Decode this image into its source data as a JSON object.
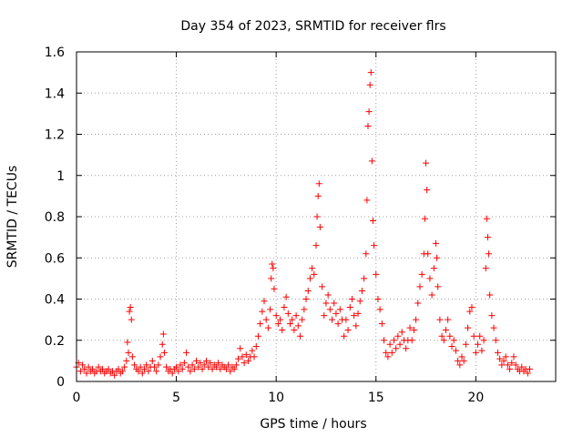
{
  "chart_data": {
    "type": "scatter",
    "title": "Day 354 of 2023, SRMTID for receiver flrs",
    "xlabel": "GPS time / hours",
    "ylabel": "SRMTID / TECUs",
    "xlim": [
      0,
      24
    ],
    "ylim": [
      0,
      1.6
    ],
    "grid": true,
    "marker": "+",
    "color": "#ff0000",
    "xticks": [
      0,
      5,
      10,
      15,
      20
    ],
    "xtick_labels": [
      "0",
      "5",
      "10",
      "15",
      "20"
    ],
    "yticks": [
      0,
      0.2,
      0.4,
      0.6,
      0.8,
      1,
      1.2,
      1.4,
      1.6
    ],
    "ytick_labels": [
      "0",
      "0.2",
      "0.4",
      "0.6",
      "0.8",
      "1",
      "1.2",
      "1.4",
      "1.6"
    ],
    "series": [
      {
        "name": "flrs",
        "points": [
          [
            0.0,
            0.07
          ],
          [
            0.1,
            0.09
          ],
          [
            0.2,
            0.05
          ],
          [
            0.3,
            0.08
          ],
          [
            0.4,
            0.06
          ],
          [
            0.5,
            0.04
          ],
          [
            0.6,
            0.07
          ],
          [
            0.7,
            0.05
          ],
          [
            0.8,
            0.06
          ],
          [
            0.9,
            0.04
          ],
          [
            1.0,
            0.05
          ],
          [
            1.1,
            0.07
          ],
          [
            1.2,
            0.05
          ],
          [
            1.3,
            0.06
          ],
          [
            1.4,
            0.04
          ],
          [
            1.5,
            0.05
          ],
          [
            1.6,
            0.06
          ],
          [
            1.7,
            0.04
          ],
          [
            1.8,
            0.05
          ],
          [
            1.9,
            0.03
          ],
          [
            2.0,
            0.05
          ],
          [
            2.1,
            0.06
          ],
          [
            2.2,
            0.04
          ],
          [
            2.3,
            0.05
          ],
          [
            2.4,
            0.07
          ],
          [
            2.5,
            0.1
          ],
          [
            2.55,
            0.19
          ],
          [
            2.6,
            0.14
          ],
          [
            2.65,
            0.34
          ],
          [
            2.7,
            0.36
          ],
          [
            2.75,
            0.3
          ],
          [
            2.8,
            0.12
          ],
          [
            2.9,
            0.08
          ],
          [
            3.0,
            0.06
          ],
          [
            3.1,
            0.05
          ],
          [
            3.2,
            0.07
          ],
          [
            3.3,
            0.04
          ],
          [
            3.4,
            0.06
          ],
          [
            3.5,
            0.08
          ],
          [
            3.6,
            0.05
          ],
          [
            3.7,
            0.07
          ],
          [
            3.8,
            0.1
          ],
          [
            3.9,
            0.07
          ],
          [
            4.0,
            0.05
          ],
          [
            4.1,
            0.08
          ],
          [
            4.2,
            0.12
          ],
          [
            4.3,
            0.18
          ],
          [
            4.35,
            0.23
          ],
          [
            4.4,
            0.14
          ],
          [
            4.5,
            0.07
          ],
          [
            4.6,
            0.05
          ],
          [
            4.7,
            0.06
          ],
          [
            4.8,
            0.04
          ],
          [
            4.9,
            0.06
          ],
          [
            5.0,
            0.07
          ],
          [
            5.1,
            0.05
          ],
          [
            5.2,
            0.08
          ],
          [
            5.3,
            0.06
          ],
          [
            5.4,
            0.09
          ],
          [
            5.5,
            0.14
          ],
          [
            5.6,
            0.07
          ],
          [
            5.7,
            0.05
          ],
          [
            5.8,
            0.08
          ],
          [
            5.9,
            0.06
          ],
          [
            6.0,
            0.1
          ],
          [
            6.1,
            0.07
          ],
          [
            6.2,
            0.09
          ],
          [
            6.3,
            0.06
          ],
          [
            6.4,
            0.08
          ],
          [
            6.5,
            0.1
          ],
          [
            6.6,
            0.07
          ],
          [
            6.7,
            0.09
          ],
          [
            6.8,
            0.06
          ],
          [
            6.9,
            0.08
          ],
          [
            7.0,
            0.07
          ],
          [
            7.1,
            0.09
          ],
          [
            7.2,
            0.06
          ],
          [
            7.3,
            0.08
          ],
          [
            7.4,
            0.07
          ],
          [
            7.5,
            0.06
          ],
          [
            7.6,
            0.08
          ],
          [
            7.7,
            0.05
          ],
          [
            7.8,
            0.07
          ],
          [
            7.9,
            0.06
          ],
          [
            8.0,
            0.08
          ],
          [
            8.1,
            0.11
          ],
          [
            8.2,
            0.16
          ],
          [
            8.3,
            0.12
          ],
          [
            8.4,
            0.09
          ],
          [
            8.5,
            0.13
          ],
          [
            8.6,
            0.1
          ],
          [
            8.7,
            0.12
          ],
          [
            8.8,
            0.15
          ],
          [
            8.9,
            0.12
          ],
          [
            9.0,
            0.17
          ],
          [
            9.1,
            0.22
          ],
          [
            9.2,
            0.28
          ],
          [
            9.3,
            0.34
          ],
          [
            9.4,
            0.39
          ],
          [
            9.5,
            0.3
          ],
          [
            9.6,
            0.26
          ],
          [
            9.7,
            0.35
          ],
          [
            9.75,
            0.5
          ],
          [
            9.8,
            0.57
          ],
          [
            9.85,
            0.55
          ],
          [
            9.9,
            0.45
          ],
          [
            10.0,
            0.32
          ],
          [
            10.1,
            0.28
          ],
          [
            10.2,
            0.3
          ],
          [
            10.3,
            0.25
          ],
          [
            10.4,
            0.36
          ],
          [
            10.5,
            0.41
          ],
          [
            10.6,
            0.33
          ],
          [
            10.7,
            0.28
          ],
          [
            10.8,
            0.3
          ],
          [
            10.9,
            0.25
          ],
          [
            11.0,
            0.32
          ],
          [
            11.1,
            0.27
          ],
          [
            11.2,
            0.22
          ],
          [
            11.3,
            0.3
          ],
          [
            11.4,
            0.35
          ],
          [
            11.5,
            0.4
          ],
          [
            11.6,
            0.44
          ],
          [
            11.7,
            0.5
          ],
          [
            11.8,
            0.55
          ],
          [
            11.9,
            0.52
          ],
          [
            12.0,
            0.66
          ],
          [
            12.05,
            0.8
          ],
          [
            12.1,
            0.9
          ],
          [
            12.15,
            0.96
          ],
          [
            12.2,
            0.75
          ],
          [
            12.3,
            0.46
          ],
          [
            12.4,
            0.32
          ],
          [
            12.5,
            0.38
          ],
          [
            12.6,
            0.42
          ],
          [
            12.7,
            0.35
          ],
          [
            12.8,
            0.3
          ],
          [
            12.9,
            0.38
          ],
          [
            13.0,
            0.33
          ],
          [
            13.1,
            0.28
          ],
          [
            13.2,
            0.35
          ],
          [
            13.3,
            0.3
          ],
          [
            13.4,
            0.22
          ],
          [
            13.5,
            0.3
          ],
          [
            13.6,
            0.25
          ],
          [
            13.7,
            0.36
          ],
          [
            13.8,
            0.4
          ],
          [
            13.9,
            0.32
          ],
          [
            14.0,
            0.27
          ],
          [
            14.1,
            0.33
          ],
          [
            14.2,
            0.39
          ],
          [
            14.3,
            0.44
          ],
          [
            14.4,
            0.5
          ],
          [
            14.5,
            0.62
          ],
          [
            14.55,
            0.88
          ],
          [
            14.6,
            1.24
          ],
          [
            14.65,
            1.31
          ],
          [
            14.7,
            1.44
          ],
          [
            14.75,
            1.5
          ],
          [
            14.8,
            1.07
          ],
          [
            14.85,
            0.78
          ],
          [
            14.9,
            0.66
          ],
          [
            15.0,
            0.52
          ],
          [
            15.1,
            0.4
          ],
          [
            15.2,
            0.35
          ],
          [
            15.3,
            0.28
          ],
          [
            15.4,
            0.2
          ],
          [
            15.5,
            0.14
          ],
          [
            15.6,
            0.12
          ],
          [
            15.7,
            0.18
          ],
          [
            15.8,
            0.14
          ],
          [
            15.9,
            0.2
          ],
          [
            16.0,
            0.16
          ],
          [
            16.1,
            0.22
          ],
          [
            16.2,
            0.18
          ],
          [
            16.3,
            0.24
          ],
          [
            16.4,
            0.2
          ],
          [
            16.5,
            0.16
          ],
          [
            16.6,
            0.2
          ],
          [
            16.7,
            0.26
          ],
          [
            16.8,
            0.2
          ],
          [
            16.9,
            0.25
          ],
          [
            17.0,
            0.3
          ],
          [
            17.1,
            0.38
          ],
          [
            17.2,
            0.46
          ],
          [
            17.3,
            0.52
          ],
          [
            17.4,
            0.62
          ],
          [
            17.45,
            0.79
          ],
          [
            17.5,
            1.06
          ],
          [
            17.55,
            0.93
          ],
          [
            17.6,
            0.62
          ],
          [
            17.7,
            0.5
          ],
          [
            17.8,
            0.42
          ],
          [
            17.9,
            0.55
          ],
          [
            18.0,
            0.67
          ],
          [
            18.05,
            0.6
          ],
          [
            18.1,
            0.46
          ],
          [
            18.2,
            0.3
          ],
          [
            18.3,
            0.22
          ],
          [
            18.4,
            0.2
          ],
          [
            18.5,
            0.25
          ],
          [
            18.6,
            0.3
          ],
          [
            18.7,
            0.22
          ],
          [
            18.8,
            0.17
          ],
          [
            18.9,
            0.2
          ],
          [
            19.0,
            0.15
          ],
          [
            19.1,
            0.1
          ],
          [
            19.2,
            0.08
          ],
          [
            19.3,
            0.12
          ],
          [
            19.4,
            0.1
          ],
          [
            19.5,
            0.18
          ],
          [
            19.6,
            0.26
          ],
          [
            19.7,
            0.34
          ],
          [
            19.8,
            0.36
          ],
          [
            19.9,
            0.22
          ],
          [
            20.0,
            0.14
          ],
          [
            20.1,
            0.18
          ],
          [
            20.2,
            0.22
          ],
          [
            20.3,
            0.15
          ],
          [
            20.4,
            0.2
          ],
          [
            20.5,
            0.55
          ],
          [
            20.55,
            0.79
          ],
          [
            20.6,
            0.7
          ],
          [
            20.65,
            0.62
          ],
          [
            20.7,
            0.42
          ],
          [
            20.8,
            0.32
          ],
          [
            20.9,
            0.26
          ],
          [
            21.0,
            0.2
          ],
          [
            21.1,
            0.14
          ],
          [
            21.2,
            0.11
          ],
          [
            21.3,
            0.08
          ],
          [
            21.4,
            0.1
          ],
          [
            21.5,
            0.12
          ],
          [
            21.6,
            0.08
          ],
          [
            21.7,
            0.06
          ],
          [
            21.8,
            0.09
          ],
          [
            21.9,
            0.12
          ],
          [
            22.0,
            0.08
          ],
          [
            22.1,
            0.06
          ],
          [
            22.2,
            0.05
          ],
          [
            22.3,
            0.07
          ],
          [
            22.4,
            0.05
          ],
          [
            22.5,
            0.06
          ],
          [
            22.6,
            0.04
          ],
          [
            22.7,
            0.06
          ]
        ]
      }
    ]
  }
}
